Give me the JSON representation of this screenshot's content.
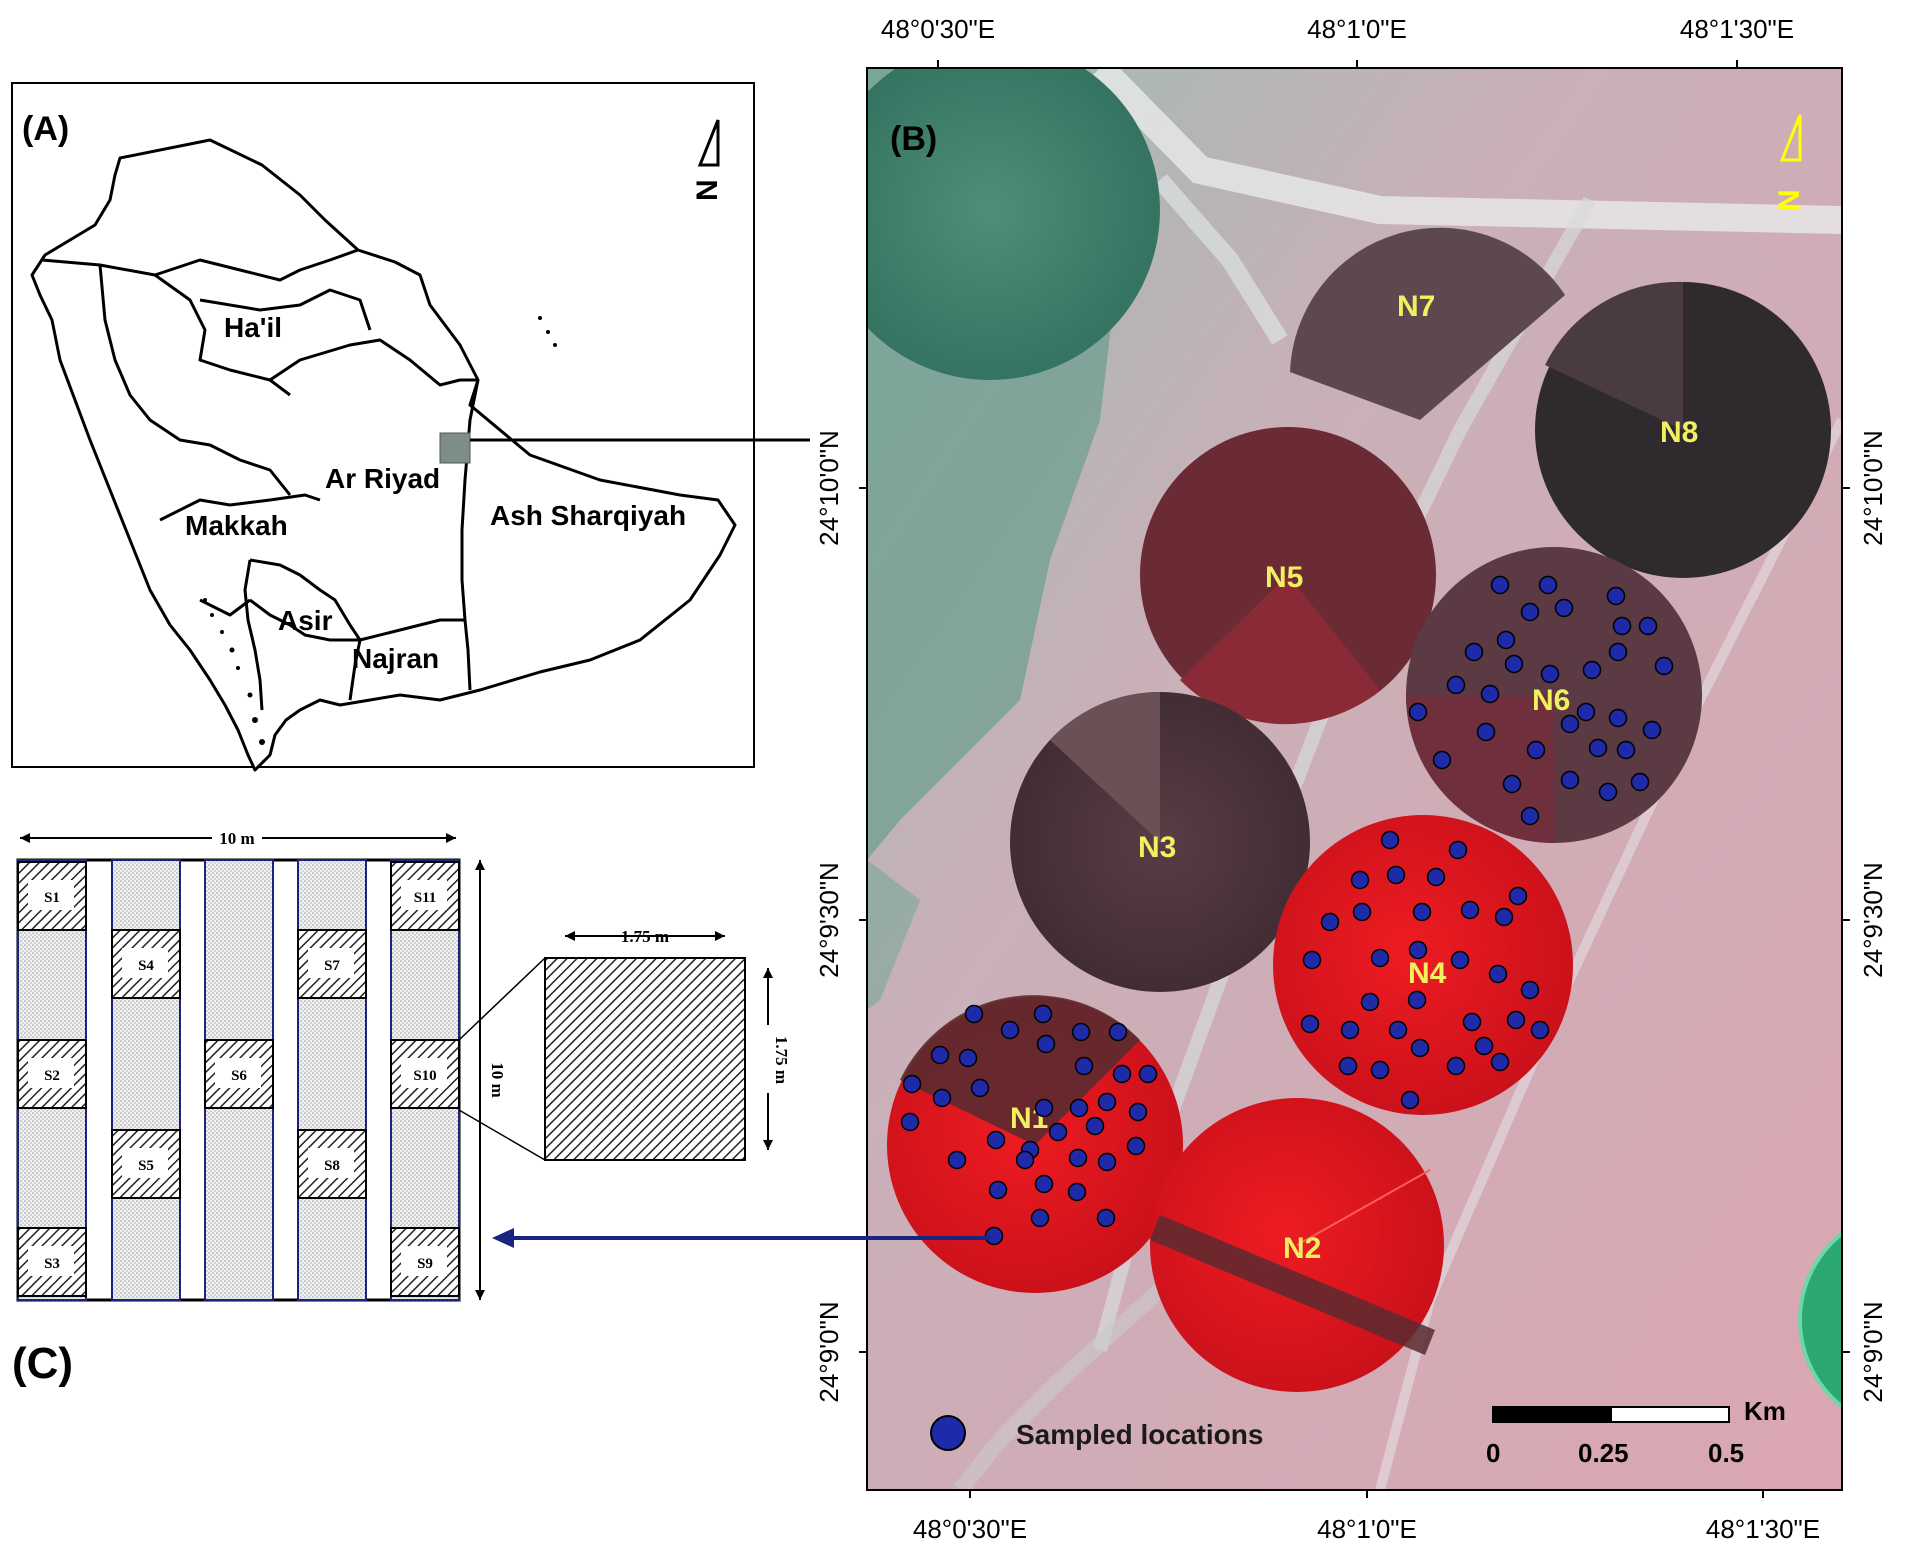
{
  "panelA": {
    "label": "(A)",
    "north": "N",
    "regions": [
      "Ha'il",
      "Ar Riyad",
      "Makkah",
      "Ash Sharqiyah",
      "Asir",
      "Najran"
    ]
  },
  "panelB": {
    "label": "(B)",
    "north": "N",
    "axes": {
      "top_lon": [
        "48°0'30\"E",
        "48°1'0\"E",
        "48°1'30\"E"
      ],
      "bottom_lon": [
        "48°0'30\"E",
        "48°1'0\"E",
        "48°1'30\"E"
      ],
      "left_lat": [
        "24°10'0\"N",
        "24°9'30\"N",
        "24°9'0\"N"
      ],
      "right_lat": [
        "24°10'0\"N",
        "24°9'30\"N",
        "24°9'0\"N"
      ]
    },
    "fields": [
      "N1",
      "N2",
      "N3",
      "N4",
      "N5",
      "N6",
      "N7",
      "N8"
    ],
    "legend": "Sampled locations",
    "scalebar": {
      "unit": "Km",
      "ticks": [
        "0",
        "0.25",
        "0.5"
      ]
    },
    "colors": {
      "sample_point": "#1e2aa8",
      "field_label": "#f2f060",
      "veg_red": "#d8141a",
      "bare": "#d7a7b0"
    }
  },
  "panelC": {
    "label": "(C)",
    "width_dim": "10 m",
    "height_dim": "10 m",
    "subplot_width": "1.75 m",
    "subplot_height": "1.75 m",
    "subplots": [
      "S1",
      "S2",
      "S3",
      "S4",
      "S5",
      "S6",
      "S7",
      "S8",
      "S9",
      "S10",
      "S11"
    ]
  }
}
